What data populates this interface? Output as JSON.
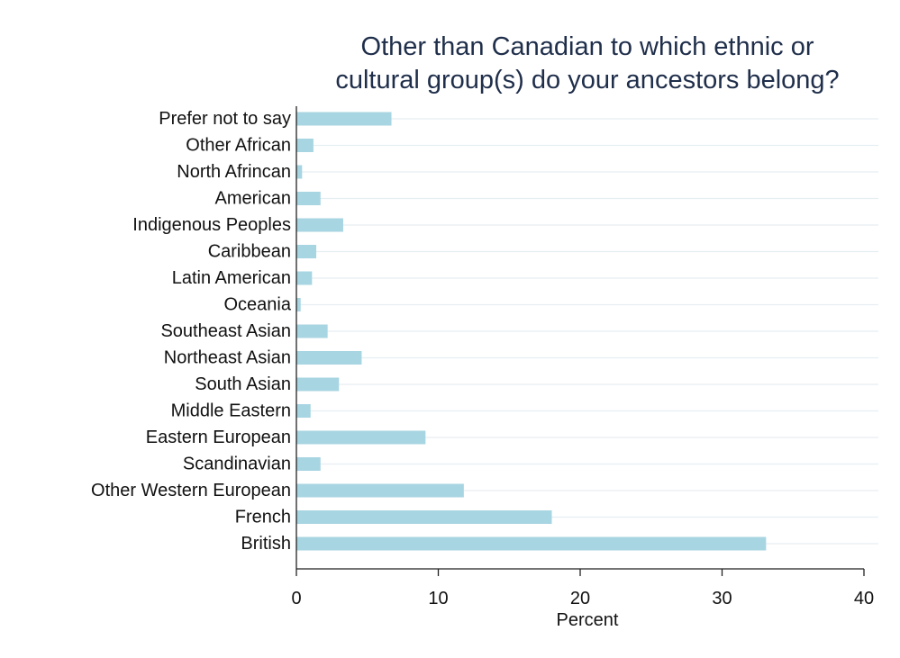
{
  "chart_data": {
    "type": "bar",
    "orientation": "horizontal",
    "title": [
      "Other than Canadian to which ethnic or",
      "cultural group(s) do your ancestors belong?"
    ],
    "xlabel": "Percent",
    "ylabel": "",
    "xlim": [
      0,
      40
    ],
    "xticks": [
      "0",
      "10",
      "20",
      "30",
      "40"
    ],
    "grid": true,
    "colors": {
      "bar": "#a8d5e2",
      "title": "#1f2e4a"
    },
    "categories": [
      "Prefer not to say",
      "Other African",
      "North Afrincan",
      "American",
      "Indigenous Peoples",
      "Caribbean",
      "Latin American",
      "Oceania",
      "Southeast Asian",
      "Northeast Asian",
      "South Asian",
      "Middle Eastern",
      "Eastern European",
      "Scandinavian",
      "Other Western European",
      "French",
      "British"
    ],
    "values": [
      6.7,
      1.2,
      0.4,
      1.7,
      3.3,
      1.4,
      1.1,
      0.3,
      2.2,
      4.6,
      3.0,
      1.0,
      9.1,
      1.7,
      11.8,
      18.0,
      33.1
    ]
  }
}
